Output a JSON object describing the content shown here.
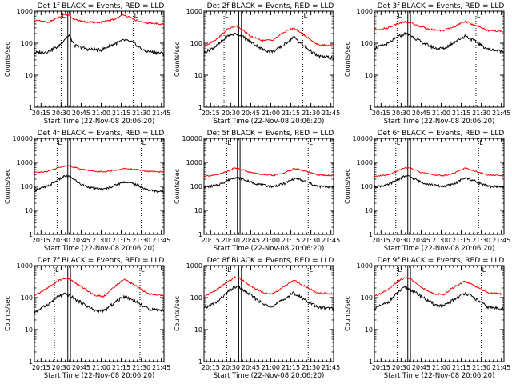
{
  "chart_data": {
    "type": "line",
    "layout": "grid 3x3",
    "shared": {
      "x_tick_labels": [
        "20:15",
        "20:30",
        "20:45",
        "21:00",
        "21:15",
        "21:30",
        "21:45"
      ],
      "x_ticks_min": [
        15,
        30,
        45,
        60,
        75,
        90,
        105
      ],
      "xlim_min": [
        10,
        107
      ],
      "xlabel": "Start Time (22-Nov-08 20:06:20)",
      "ylabel": "Counts/sec",
      "y_scale": "log",
      "y_tick_labels": [
        "1",
        "10",
        "100",
        "1000",
        "10000"
      ],
      "ylim": [
        1,
        10000
      ],
      "series_colors": {
        "events": "#000000",
        "lld": "#ff0000"
      },
      "markers": {
        "left": "L",
        "right": "L"
      }
    },
    "panels": [
      {
        "title": "Det 1f BLACK = Events, RED = LLD",
        "ylim_top": 1000,
        "dotted_x": [
          30,
          84
        ],
        "solid_x": [
          35,
          37
        ],
        "events": [
          [
            10,
            50
          ],
          [
            20,
            55
          ],
          [
            28,
            80
          ],
          [
            33,
            140
          ],
          [
            36,
            175
          ],
          [
            40,
            85
          ],
          [
            50,
            65
          ],
          [
            60,
            62
          ],
          [
            70,
            95
          ],
          [
            77,
            125
          ],
          [
            84,
            105
          ],
          [
            92,
            58
          ],
          [
            106,
            48
          ]
        ],
        "lld": [
          [
            10,
            520
          ],
          [
            20,
            450
          ],
          [
            28,
            620
          ],
          [
            33,
            780
          ],
          [
            36,
            760
          ],
          [
            40,
            540
          ],
          [
            50,
            450
          ],
          [
            60,
            450
          ],
          [
            70,
            560
          ],
          [
            77,
            780
          ],
          [
            84,
            560
          ],
          [
            92,
            430
          ],
          [
            106,
            400
          ]
        ]
      },
      {
        "title": "Det 2f BLACK = Events, RED = LLD",
        "ylim_top": 1000,
        "dotted_x": [
          25,
          84
        ],
        "solid_x": [
          36,
          38
        ],
        "events": [
          [
            10,
            50
          ],
          [
            20,
            85
          ],
          [
            28,
            170
          ],
          [
            34,
            200
          ],
          [
            38,
            170
          ],
          [
            45,
            110
          ],
          [
            55,
            60
          ],
          [
            62,
            55
          ],
          [
            70,
            90
          ],
          [
            77,
            160
          ],
          [
            85,
            80
          ],
          [
            95,
            40
          ],
          [
            106,
            35
          ]
        ],
        "lld": [
          [
            10,
            80
          ],
          [
            20,
            140
          ],
          [
            28,
            280
          ],
          [
            34,
            340
          ],
          [
            38,
            280
          ],
          [
            45,
            160
          ],
          [
            55,
            120
          ],
          [
            62,
            130
          ],
          [
            70,
            220
          ],
          [
            77,
            300
          ],
          [
            85,
            180
          ],
          [
            95,
            90
          ],
          [
            106,
            85
          ]
        ]
      },
      {
        "title": "Det 3f BLACK = Events, RED = LLD",
        "ylim_top": 1000,
        "dotted_x": [
          27,
          86
        ],
        "solid_x": [
          35,
          37
        ],
        "events": [
          [
            10,
            70
          ],
          [
            20,
            95
          ],
          [
            28,
            160
          ],
          [
            33,
            200
          ],
          [
            37,
            175
          ],
          [
            45,
            110
          ],
          [
            55,
            70
          ],
          [
            62,
            68
          ],
          [
            70,
            110
          ],
          [
            78,
            170
          ],
          [
            86,
            110
          ],
          [
            95,
            65
          ],
          [
            106,
            55
          ]
        ],
        "lld": [
          [
            10,
            260
          ],
          [
            20,
            300
          ],
          [
            28,
            420
          ],
          [
            33,
            470
          ],
          [
            37,
            440
          ],
          [
            45,
            320
          ],
          [
            55,
            260
          ],
          [
            62,
            250
          ],
          [
            70,
            330
          ],
          [
            78,
            480
          ],
          [
            86,
            350
          ],
          [
            95,
            250
          ],
          [
            106,
            230
          ]
        ]
      },
      {
        "title": "Det 4f BLACK = Events, RED = LLD",
        "ylim_top": 10000,
        "dotted_x": [
          27,
          90
        ],
        "solid_x": [
          35,
          37
        ],
        "events": [
          [
            10,
            70
          ],
          [
            20,
            100
          ],
          [
            28,
            190
          ],
          [
            33,
            270
          ],
          [
            37,
            250
          ],
          [
            45,
            120
          ],
          [
            55,
            80
          ],
          [
            62,
            75
          ],
          [
            70,
            110
          ],
          [
            78,
            160
          ],
          [
            86,
            120
          ],
          [
            95,
            70
          ],
          [
            106,
            60
          ]
        ],
        "lld": [
          [
            10,
            380
          ],
          [
            20,
            430
          ],
          [
            28,
            600
          ],
          [
            33,
            720
          ],
          [
            37,
            700
          ],
          [
            45,
            520
          ],
          [
            55,
            430
          ],
          [
            62,
            410
          ],
          [
            70,
            460
          ],
          [
            78,
            560
          ],
          [
            86,
            500
          ],
          [
            95,
            420
          ],
          [
            106,
            400
          ]
        ]
      },
      {
        "title": "Det 5f BLACK = Events, RED = LLD",
        "ylim_top": 10000,
        "dotted_x": [
          27,
          88
        ],
        "solid_x": [
          35,
          37
        ],
        "events": [
          [
            10,
            95
          ],
          [
            20,
            110
          ],
          [
            28,
            180
          ],
          [
            33,
            240
          ],
          [
            37,
            220
          ],
          [
            45,
            150
          ],
          [
            55,
            110
          ],
          [
            62,
            100
          ],
          [
            70,
            130
          ],
          [
            78,
            220
          ],
          [
            86,
            160
          ],
          [
            95,
            100
          ],
          [
            106,
            95
          ]
        ],
        "lld": [
          [
            10,
            270
          ],
          [
            20,
            300
          ],
          [
            28,
            440
          ],
          [
            33,
            580
          ],
          [
            37,
            540
          ],
          [
            45,
            380
          ],
          [
            55,
            300
          ],
          [
            62,
            290
          ],
          [
            70,
            360
          ],
          [
            78,
            560
          ],
          [
            86,
            430
          ],
          [
            95,
            300
          ],
          [
            106,
            280
          ]
        ]
      },
      {
        "title": "Det 6f BLACK = Events, RED = LLD",
        "ylim_top": 10000,
        "dotted_x": [
          26,
          88
        ],
        "solid_x": [
          35,
          37
        ],
        "events": [
          [
            10,
            95
          ],
          [
            20,
            115
          ],
          [
            28,
            200
          ],
          [
            33,
            270
          ],
          [
            37,
            250
          ],
          [
            45,
            150
          ],
          [
            55,
            110
          ],
          [
            62,
            100
          ],
          [
            70,
            130
          ],
          [
            78,
            230
          ],
          [
            86,
            160
          ],
          [
            95,
            100
          ],
          [
            106,
            95
          ]
        ],
        "lld": [
          [
            10,
            260
          ],
          [
            20,
            300
          ],
          [
            28,
            460
          ],
          [
            33,
            620
          ],
          [
            37,
            580
          ],
          [
            45,
            380
          ],
          [
            55,
            300
          ],
          [
            62,
            280
          ],
          [
            70,
            360
          ],
          [
            78,
            580
          ],
          [
            86,
            420
          ],
          [
            95,
            300
          ],
          [
            106,
            280
          ]
        ]
      },
      {
        "title": "Det 7f BLACK = Events, RED = LLD",
        "ylim_top": 1000,
        "dotted_x": [
          25,
          89
        ],
        "solid_x": [
          35,
          37
        ],
        "events": [
          [
            10,
            35
          ],
          [
            20,
            60
          ],
          [
            28,
            110
          ],
          [
            33,
            130
          ],
          [
            37,
            110
          ],
          [
            45,
            70
          ],
          [
            55,
            40
          ],
          [
            62,
            38
          ],
          [
            70,
            70
          ],
          [
            77,
            110
          ],
          [
            85,
            80
          ],
          [
            95,
            45
          ],
          [
            106,
            40
          ]
        ],
        "lld": [
          [
            10,
            110
          ],
          [
            20,
            200
          ],
          [
            28,
            340
          ],
          [
            33,
            400
          ],
          [
            37,
            360
          ],
          [
            45,
            220
          ],
          [
            55,
            120
          ],
          [
            62,
            110
          ],
          [
            70,
            220
          ],
          [
            77,
            370
          ],
          [
            85,
            250
          ],
          [
            95,
            130
          ],
          [
            106,
            120
          ]
        ]
      },
      {
        "title": "Det 8f BLACK = Events, RED = LLD",
        "ylim_top": 1000,
        "dotted_x": [
          27,
          88
        ],
        "solid_x": [
          36,
          38
        ],
        "events": [
          [
            10,
            45
          ],
          [
            20,
            75
          ],
          [
            28,
            150
          ],
          [
            33,
            220
          ],
          [
            37,
            200
          ],
          [
            45,
            120
          ],
          [
            55,
            60
          ],
          [
            62,
            55
          ],
          [
            70,
            90
          ],
          [
            77,
            140
          ],
          [
            85,
            90
          ],
          [
            95,
            50
          ],
          [
            106,
            45
          ]
        ],
        "lld": [
          [
            10,
            110
          ],
          [
            20,
            180
          ],
          [
            28,
            320
          ],
          [
            33,
            430
          ],
          [
            37,
            400
          ],
          [
            45,
            230
          ],
          [
            55,
            140
          ],
          [
            62,
            130
          ],
          [
            70,
            220
          ],
          [
            77,
            350
          ],
          [
            85,
            230
          ],
          [
            95,
            140
          ],
          [
            106,
            130
          ]
        ]
      },
      {
        "title": "Det 9f BLACK = Events, RED = LLD",
        "ylim_top": 1000,
        "dotted_x": [
          27,
          90
        ],
        "solid_x": [
          35,
          37
        ],
        "events": [
          [
            10,
            45
          ],
          [
            20,
            70
          ],
          [
            28,
            150
          ],
          [
            33,
            210
          ],
          [
            37,
            180
          ],
          [
            45,
            110
          ],
          [
            55,
            60
          ],
          [
            62,
            55
          ],
          [
            70,
            90
          ],
          [
            78,
            140
          ],
          [
            86,
            90
          ],
          [
            95,
            50
          ],
          [
            106,
            45
          ]
        ],
        "lld": [
          [
            10,
            110
          ],
          [
            20,
            170
          ],
          [
            28,
            330
          ],
          [
            33,
            420
          ],
          [
            37,
            380
          ],
          [
            45,
            210
          ],
          [
            55,
            130
          ],
          [
            62,
            125
          ],
          [
            70,
            220
          ],
          [
            78,
            330
          ],
          [
            86,
            220
          ],
          [
            95,
            140
          ],
          [
            106,
            130
          ]
        ]
      }
    ]
  }
}
